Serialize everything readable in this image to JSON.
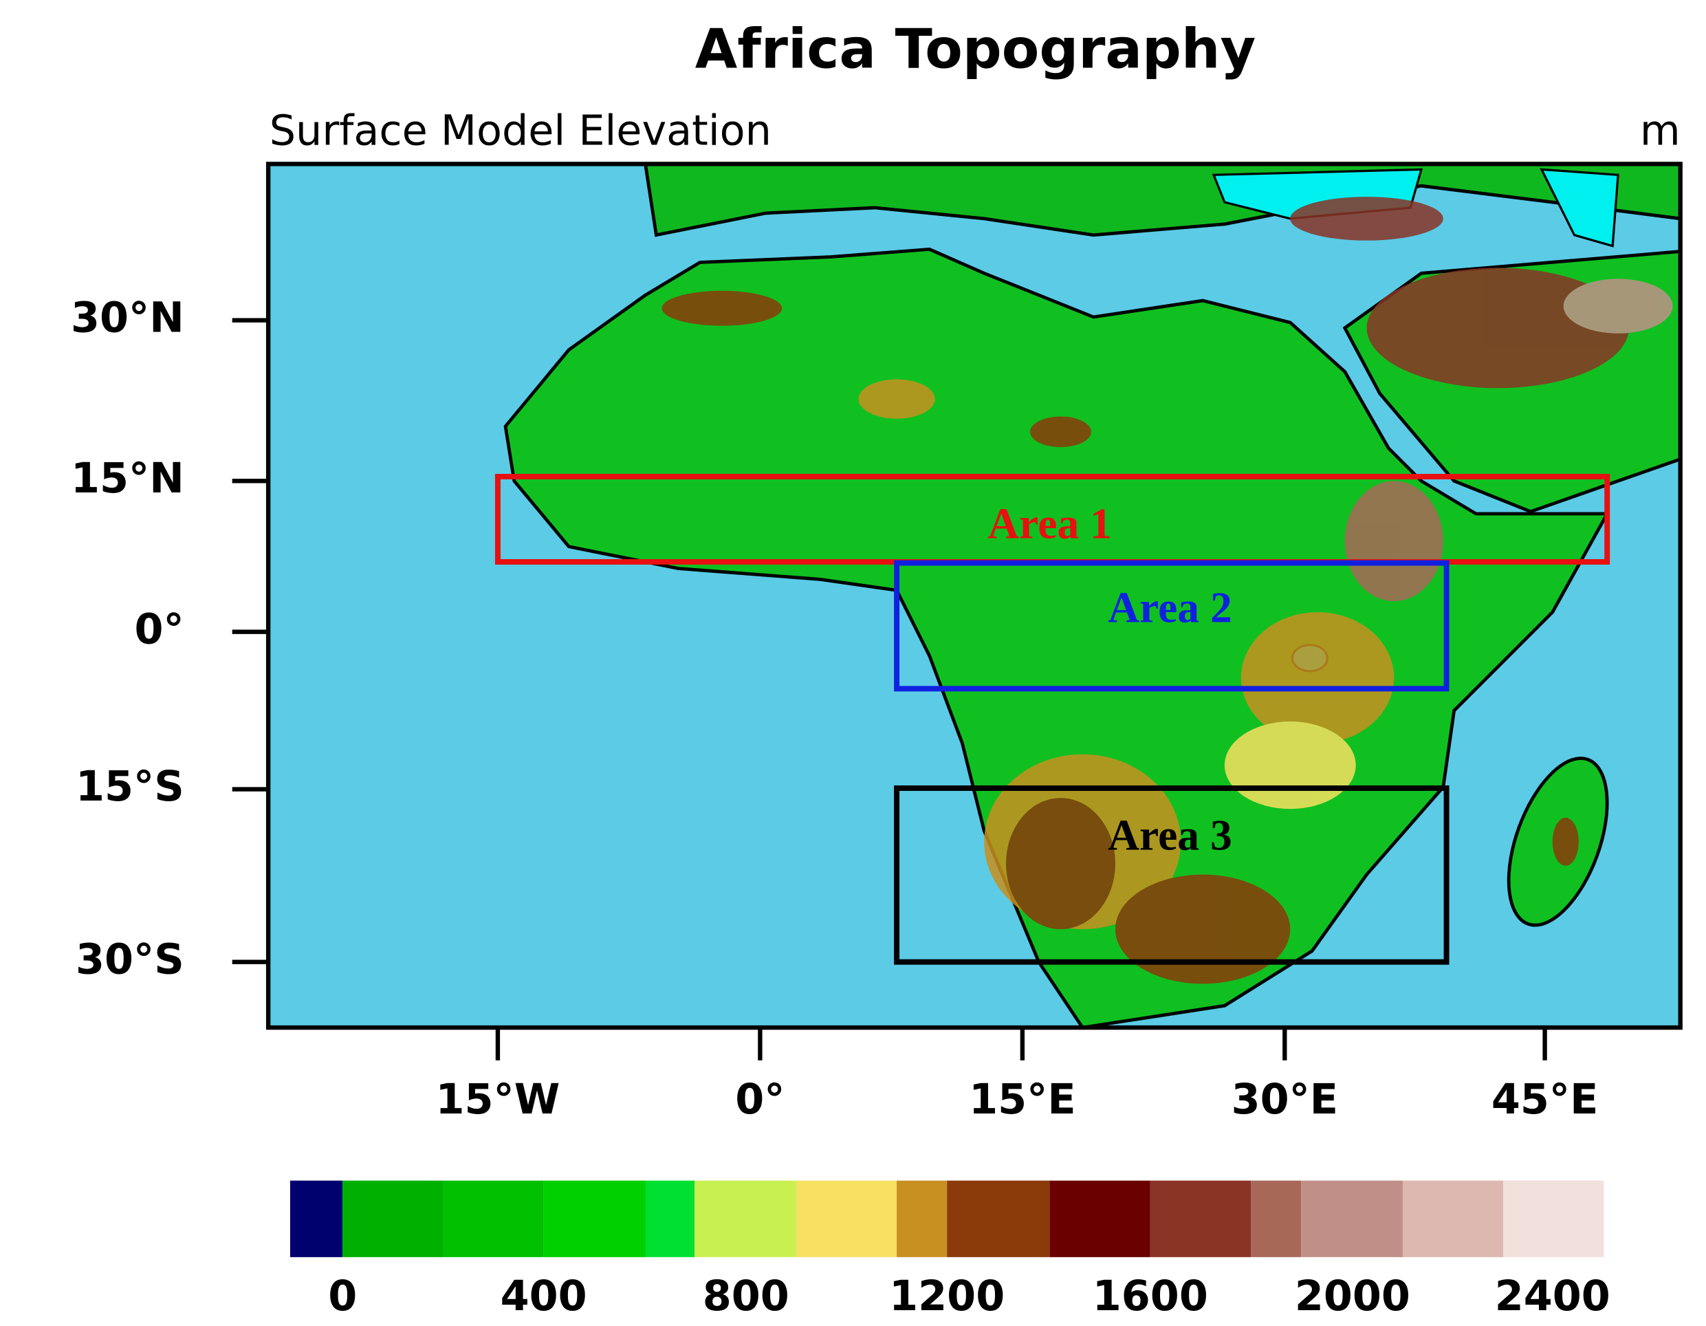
{
  "map": {
    "title": "Africa Topography",
    "subtitle": "Surface Model Elevation",
    "unit": "m",
    "lat_ticks": [
      "30°N",
      "15°N",
      "0°",
      "15°S",
      "30°S"
    ],
    "lon_ticks": [
      "15°W",
      "0°",
      "15°E",
      "30°E",
      "45°E"
    ],
    "areas": [
      {
        "label": "Area 1",
        "color": "#e81010"
      },
      {
        "label": "Area 2",
        "color": "#1020e0"
      },
      {
        "label": "Area 3",
        "color": "#000000"
      }
    ],
    "colorbar": {
      "colors": [
        "#00006e",
        "#00b000",
        "#00c000",
        "#00d000",
        "#00e030",
        "#c8f050",
        "#f8e060",
        "#c89020",
        "#8b3a0a",
        "#6a0000",
        "#8a3426",
        "#a86858",
        "#c09088",
        "#dcb8b0",
        "#f2e0dc"
      ],
      "labels": [
        0,
        400,
        800,
        1200,
        1600,
        2000,
        2400
      ]
    }
  }
}
